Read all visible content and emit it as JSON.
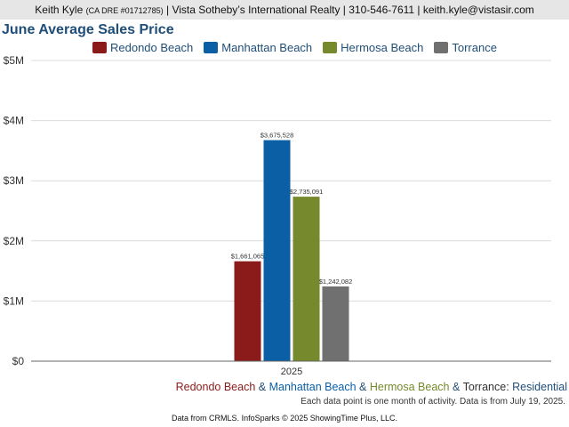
{
  "header": {
    "agent": "Keith Kyle",
    "license": "(CA DRE #01712785)",
    "rest": "| Vista Sotheby’s International Realty | 310-546-7611 | keith.kyle@vistasir.com"
  },
  "chart_data": {
    "type": "bar",
    "title": "June Average Sales Price",
    "categories": [
      "2025"
    ],
    "series": [
      {
        "name": "Redondo Beach",
        "color": "#8b1a1a",
        "values": [
          1661065
        ],
        "label": "$1,661,065"
      },
      {
        "name": "Manhattan Beach",
        "color": "#0b5fa5",
        "values": [
          3675528
        ],
        "label": "$3,675,528"
      },
      {
        "name": "Hermosa Beach",
        "color": "#76892c",
        "values": [
          2735091
        ],
        "label": "$2,735,091"
      },
      {
        "name": "Torrance",
        "color": "#707070",
        "values": [
          1242082
        ],
        "label": "$1,242,082"
      }
    ],
    "yticks": [
      {
        "value": 0,
        "label": "$0"
      },
      {
        "value": 1000000,
        "label": "$1M"
      },
      {
        "value": 2000000,
        "label": "$2M"
      },
      {
        "value": 3000000,
        "label": "$3M"
      },
      {
        "value": 4000000,
        "label": "$4M"
      },
      {
        "value": 5000000,
        "label": "$5M"
      }
    ],
    "ylim": [
      0,
      5000000
    ],
    "grid": true,
    "legend": "top"
  },
  "footer": {
    "areas": [
      "Redondo Beach",
      "Manhattan Beach",
      "Hermosa Beach",
      "Torrance"
    ],
    "separator": " & ",
    "suffix": ": ",
    "property_type": "Residential",
    "note": "Each data point is one month of activity. Data is from July 19, 2025.",
    "source": "Data from CRMLS. InfoSparks © 2025 ShowingTime Plus, LLC."
  },
  "colors": {
    "title": "#1f4e79",
    "redondo": "#8b1a1a",
    "manhattan": "#0b5fa5",
    "hermosa": "#76892c",
    "torrance": "#707070"
  }
}
